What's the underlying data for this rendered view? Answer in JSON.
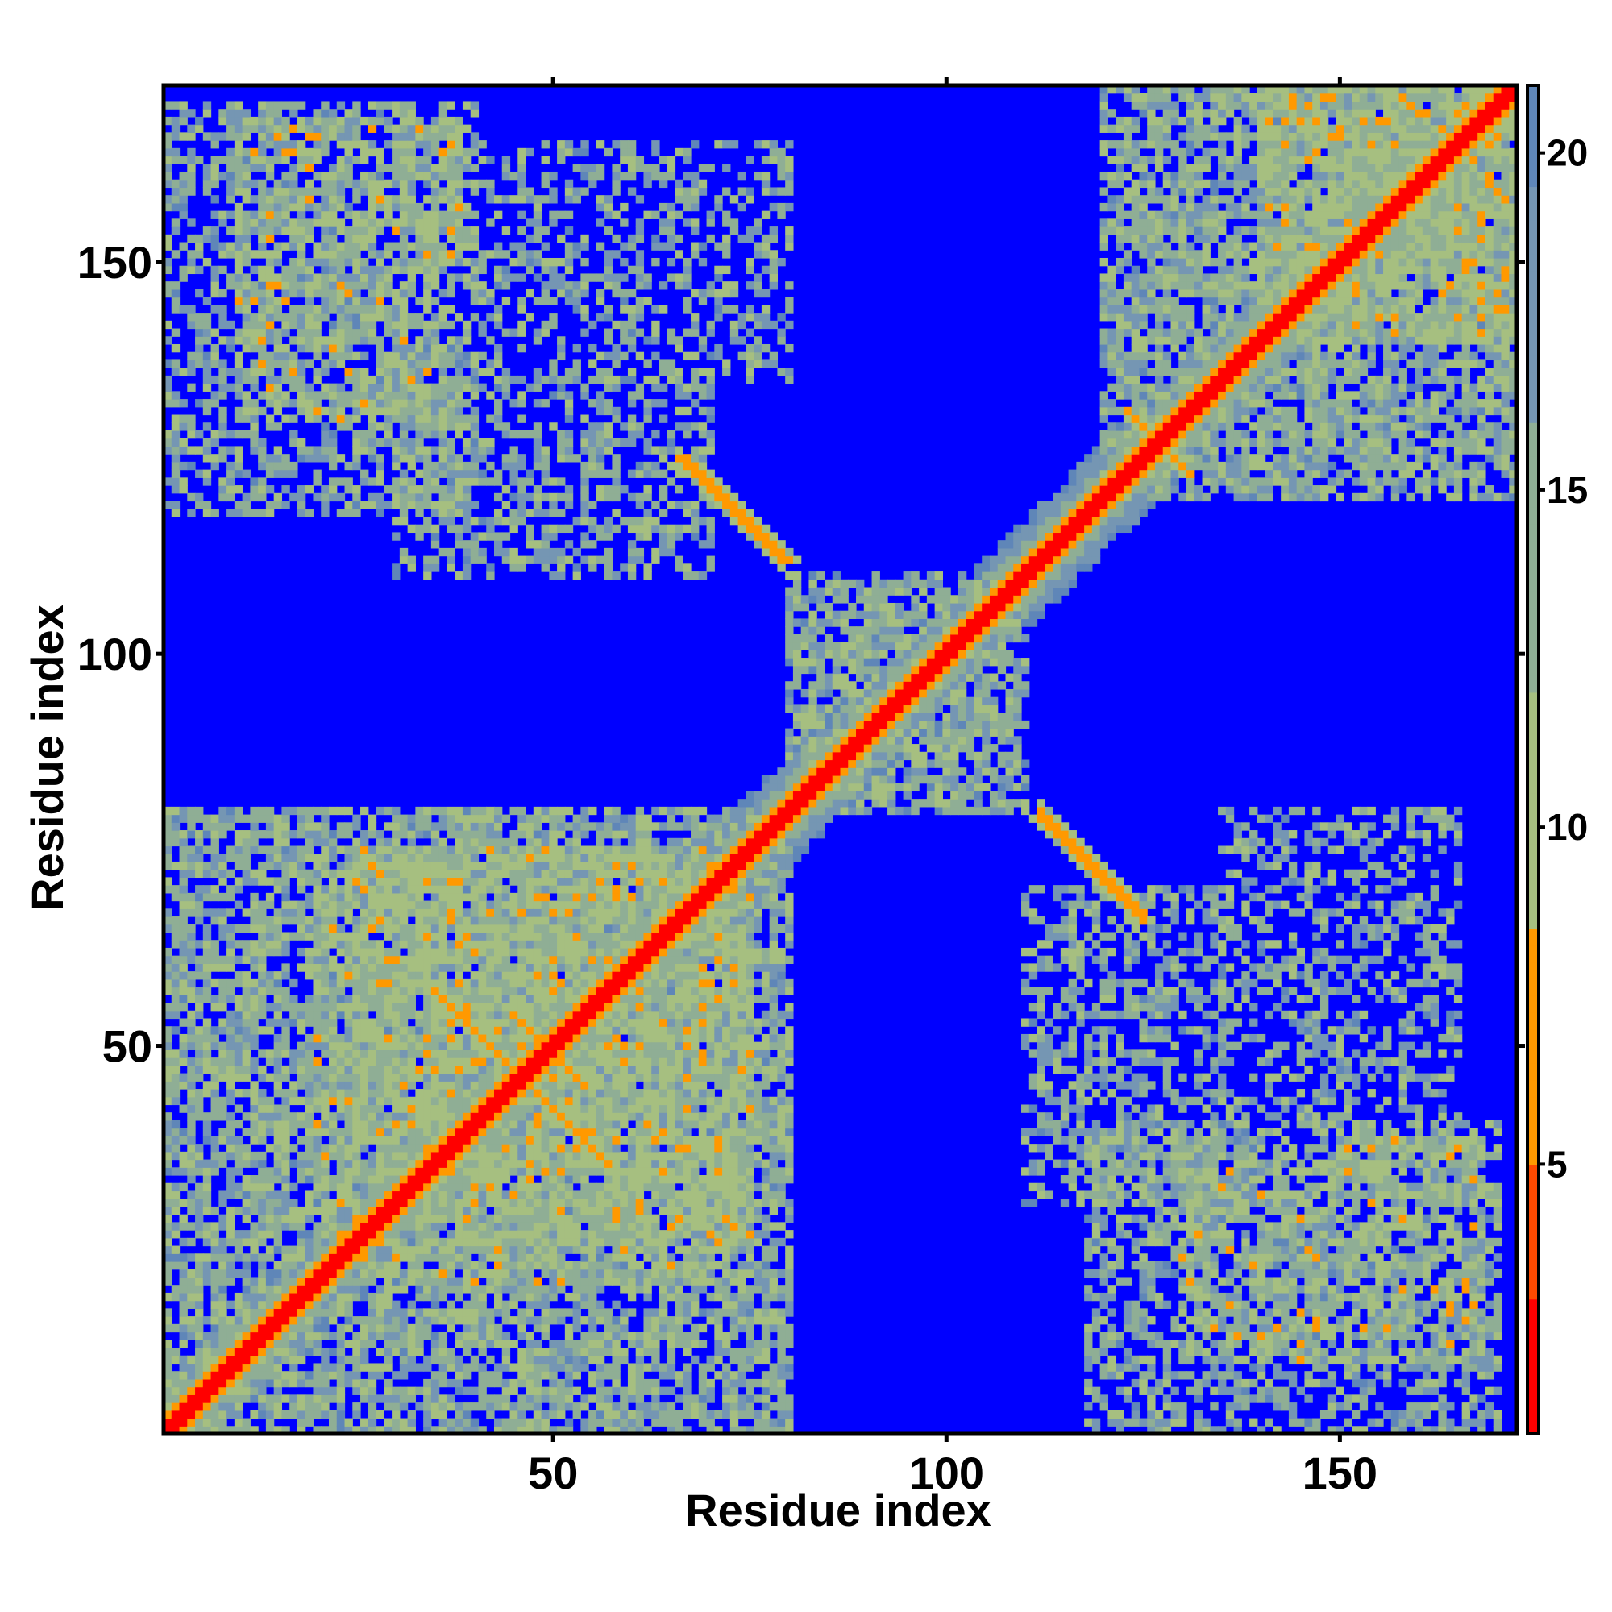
{
  "chart_data": {
    "type": "heatmap",
    "title": "",
    "xlabel": "Residue index",
    "ylabel": "Residue index",
    "n_residues": 172,
    "xlim": [
      1,
      172
    ],
    "ylim": [
      1,
      172
    ],
    "x_ticks": [
      50,
      100,
      150
    ],
    "y_ticks": [
      50,
      100,
      150
    ],
    "x_tick_labels": [
      "50",
      "100",
      "150"
    ],
    "y_tick_labels": [
      "50",
      "100",
      "150"
    ],
    "colorbar": {
      "range": [
        1,
        21
      ],
      "ticks": [
        5,
        10,
        15,
        20
      ],
      "tick_labels": [
        "5",
        "10",
        "15",
        "20"
      ],
      "colors": {
        "red": "#ff0000",
        "orange": "#ff9900",
        "green": "#a6bf80",
        "steel": "#5f86b8",
        "blue": "#0000ff"
      },
      "stops": [
        {
          "value": 1,
          "color": "#ff0000"
        },
        {
          "value": 4.5,
          "color": "#ff3000"
        },
        {
          "value": 8.5,
          "color": "#ff9900"
        },
        {
          "value": 8.6,
          "color": "#a6bf80"
        },
        {
          "value": 13,
          "color": "#9fb88a"
        },
        {
          "value": 18,
          "color": "#6e8fb0"
        },
        {
          "value": 21,
          "color": "#5f86b8"
        }
      ],
      "saturated_color": "#0000ff"
    },
    "background_color": "#0000ff",
    "symmetric": true,
    "contact_regions": [
      {
        "x": [
          1,
          172
        ],
        "y": [
          1,
          172
        ],
        "note": "diagonal band"
      },
      {
        "x": [
          112,
          128
        ],
        "y": [
          66,
          80
        ],
        "note": "antiparallel strip"
      },
      {
        "x": [
          67,
          80
        ],
        "y": [
          112,
          126
        ],
        "note": "antiparallel strip"
      },
      {
        "x": [
          118,
          172
        ],
        "y": [
          1,
          40
        ]
      },
      {
        "x": [
          1,
          40
        ],
        "y": [
          120,
          172
        ]
      },
      {
        "x": [
          110,
          135
        ],
        "y": [
          30,
          70
        ]
      },
      {
        "x": [
          30,
          75
        ],
        "y": [
          110,
          135
        ]
      },
      {
        "x": [
          135,
          165
        ],
        "y": [
          40,
          80
        ]
      },
      {
        "x": [
          40,
          80
        ],
        "y": [
          140,
          165
        ]
      },
      {
        "x": [
          1,
          80
        ],
        "y": [
          1,
          80
        ],
        "note": "dense block"
      },
      {
        "x": [
          80,
          172
        ],
        "y": [
          80,
          172
        ],
        "note": "dense block"
      }
    ]
  }
}
